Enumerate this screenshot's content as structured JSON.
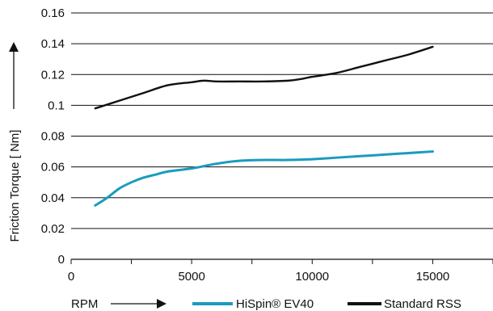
{
  "chart_data": {
    "type": "line",
    "xlabel": "RPM",
    "ylabel": "Friction Torque [ Nm]",
    "xlim": [
      0,
      17500
    ],
    "ylim": [
      0,
      0.16
    ],
    "x_ticks": [
      {
        "value": 0,
        "label": "0"
      },
      {
        "value": 5000,
        "label": "5000"
      },
      {
        "value": 10000,
        "label": "10000"
      },
      {
        "value": 15000,
        "label": "15000"
      }
    ],
    "y_ticks": [
      {
        "value": 0,
        "label": "0"
      },
      {
        "value": 0.02,
        "label": "0.02"
      },
      {
        "value": 0.04,
        "label": "0.04"
      },
      {
        "value": 0.06,
        "label": "0.06"
      },
      {
        "value": 0.08,
        "label": "0.08"
      },
      {
        "value": 0.1,
        "label": "0.1"
      },
      {
        "value": 0.12,
        "label": "0.12"
      },
      {
        "value": 0.14,
        "label": "0.14"
      },
      {
        "value": 0.16,
        "label": "0.16"
      }
    ],
    "grid": "horizontal",
    "legend_position": "bottom",
    "series": [
      {
        "name": "HiSpin® EV40",
        "color": "#1a9bbf",
        "x": [
          1000,
          1500,
          2000,
          2500,
          3000,
          3500,
          4000,
          5000,
          6000,
          7000,
          8000,
          9000,
          10000,
          11000,
          12000,
          13000,
          14000,
          15000
        ],
        "y": [
          0.035,
          0.04,
          0.046,
          0.05,
          0.053,
          0.055,
          0.057,
          0.059,
          0.062,
          0.064,
          0.0645,
          0.0645,
          0.065,
          0.066,
          0.067,
          0.068,
          0.069,
          0.07
        ]
      },
      {
        "name": "Standard RSS",
        "color": "#111111",
        "x": [
          1000,
          2000,
          3000,
          4000,
          5000,
          5500,
          6000,
          7000,
          8000,
          9000,
          9500,
          10000,
          11000,
          12000,
          13000,
          14000,
          15000
        ],
        "y": [
          0.098,
          0.103,
          0.108,
          0.113,
          0.115,
          0.116,
          0.1155,
          0.1155,
          0.1155,
          0.116,
          0.117,
          0.1185,
          0.121,
          0.125,
          0.129,
          0.133,
          0.138
        ]
      }
    ]
  }
}
